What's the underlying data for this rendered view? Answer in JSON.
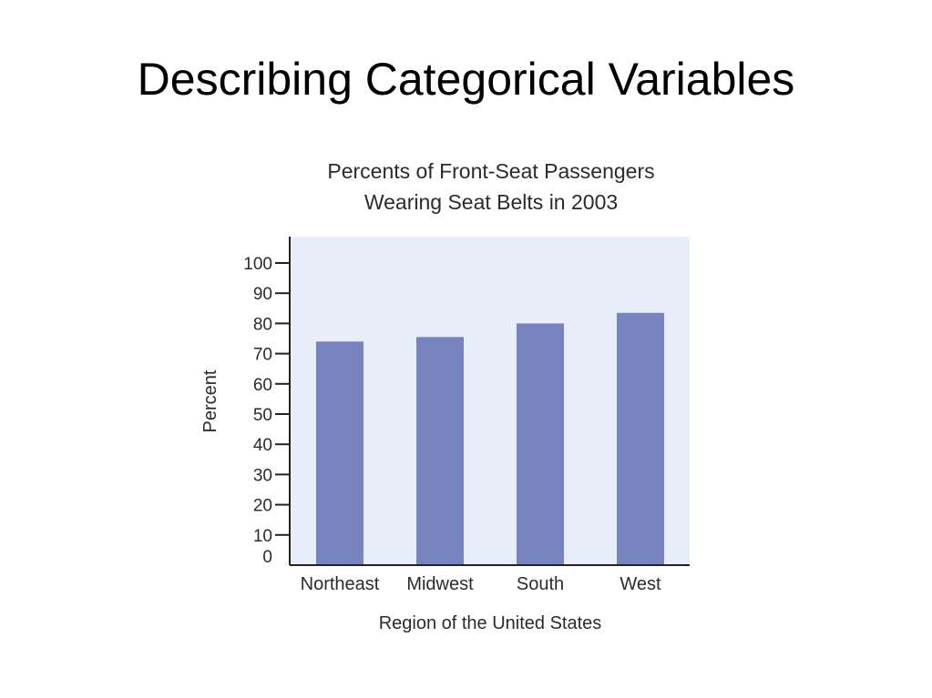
{
  "slide": {
    "title": "Describing Categorical Variables"
  },
  "colors": {
    "plot_background": "#e8edfa",
    "bar": "#7783bf",
    "axis": "#222222"
  },
  "chart_data": {
    "type": "bar",
    "title_lines": [
      "Percents of Front-Seat Passengers",
      "Wearing Seat Belts in 2003"
    ],
    "xlabel": "Region of the United States",
    "ylabel": "Percent",
    "categories": [
      "Northeast",
      "Midwest",
      "South",
      "West"
    ],
    "values": [
      74,
      75.5,
      80,
      83.5
    ],
    "ylim": [
      0,
      100
    ],
    "yticks": [
      0,
      10,
      20,
      30,
      40,
      50,
      60,
      70,
      80,
      90,
      100
    ],
    "grid": false,
    "legend": "none"
  }
}
